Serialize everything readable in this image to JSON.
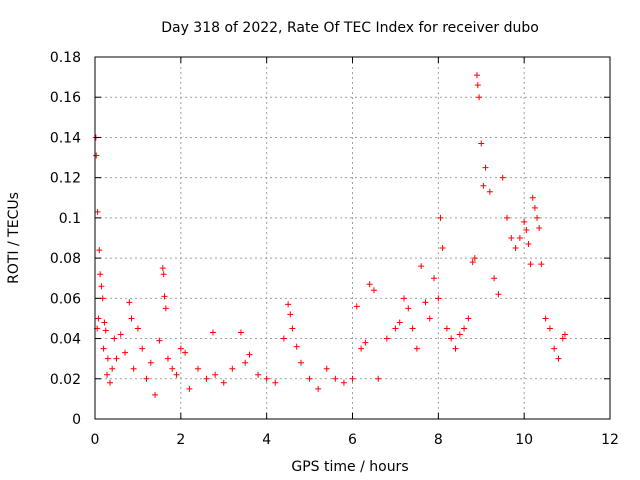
{
  "chart_data": {
    "type": "scatter",
    "title": "Day 318 of 2022, Rate Of TEC Index for receiver dubo",
    "xlabel": "GPS time / hours",
    "ylabel": "ROTI / TECUs",
    "xlim": [
      0,
      12
    ],
    "ylim": [
      0,
      0.18
    ],
    "xticks": [
      0,
      2,
      4,
      6,
      8,
      10,
      12
    ],
    "yticks": [
      0,
      0.02,
      0.04,
      0.06,
      0.08,
      0.1,
      0.12,
      0.14,
      0.16,
      0.18
    ],
    "ytick_labels": [
      "0",
      "0.02",
      "0.04",
      "0.06",
      "0.08",
      "0.1",
      "0.12",
      "0.14",
      "0.16",
      "0.18"
    ],
    "grid": true,
    "marker": "+",
    "marker_color": "#ff0000",
    "series": [
      {
        "name": "ROTI",
        "x": [
          0.02,
          0.03,
          0.05,
          0.06,
          0.08,
          0.1,
          0.12,
          0.15,
          0.18,
          0.2,
          0.22,
          0.25,
          0.28,
          0.3,
          0.35,
          0.4,
          0.45,
          0.5,
          0.6,
          0.7,
          0.8,
          0.85,
          0.9,
          1.0,
          1.1,
          1.2,
          1.3,
          1.4,
          1.5,
          1.58,
          1.6,
          1.62,
          1.65,
          1.7,
          1.8,
          1.9,
          2.0,
          2.1,
          2.2,
          2.4,
          2.6,
          2.75,
          2.8,
          3.0,
          3.2,
          3.4,
          3.5,
          3.6,
          3.8,
          4.0,
          4.2,
          4.4,
          4.5,
          4.55,
          4.6,
          4.7,
          4.8,
          5.0,
          5.2,
          5.4,
          5.6,
          5.8,
          6.0,
          6.1,
          6.2,
          6.3,
          6.4,
          6.5,
          6.6,
          6.8,
          7.0,
          7.1,
          7.2,
          7.3,
          7.4,
          7.5,
          7.6,
          7.7,
          7.8,
          7.9,
          8.0,
          8.05,
          8.1,
          8.2,
          8.3,
          8.4,
          8.5,
          8.6,
          8.7,
          8.8,
          8.85,
          8.9,
          8.92,
          8.95,
          9.0,
          9.05,
          9.1,
          9.2,
          9.3,
          9.4,
          9.5,
          9.6,
          9.7,
          9.8,
          9.9,
          10.0,
          10.05,
          10.1,
          10.15,
          10.2,
          10.25,
          10.3,
          10.35,
          10.4,
          10.5,
          10.6,
          10.7,
          10.8,
          10.9,
          10.95
        ],
        "y": [
          0.14,
          0.131,
          0.045,
          0.103,
          0.05,
          0.084,
          0.072,
          0.066,
          0.06,
          0.035,
          0.048,
          0.044,
          0.022,
          0.03,
          0.018,
          0.025,
          0.04,
          0.03,
          0.042,
          0.033,
          0.058,
          0.05,
          0.025,
          0.045,
          0.035,
          0.02,
          0.028,
          0.012,
          0.039,
          0.075,
          0.072,
          0.061,
          0.055,
          0.03,
          0.025,
          0.022,
          0.035,
          0.033,
          0.015,
          0.025,
          0.02,
          0.043,
          0.022,
          0.018,
          0.025,
          0.043,
          0.028,
          0.032,
          0.022,
          0.02,
          0.018,
          0.04,
          0.057,
          0.052,
          0.045,
          0.036,
          0.028,
          0.02,
          0.015,
          0.025,
          0.02,
          0.018,
          0.02,
          0.056,
          0.035,
          0.038,
          0.067,
          0.064,
          0.02,
          0.04,
          0.045,
          0.048,
          0.06,
          0.055,
          0.045,
          0.035,
          0.076,
          0.058,
          0.05,
          0.07,
          0.06,
          0.1,
          0.085,
          0.045,
          0.04,
          0.035,
          0.042,
          0.045,
          0.05,
          0.078,
          0.08,
          0.171,
          0.166,
          0.16,
          0.137,
          0.116,
          0.125,
          0.113,
          0.07,
          0.062,
          0.12,
          0.1,
          0.09,
          0.085,
          0.09,
          0.098,
          0.094,
          0.087,
          0.077,
          0.11,
          0.105,
          0.1,
          0.095,
          0.077,
          0.05,
          0.045,
          0.035,
          0.03,
          0.04,
          0.042
        ]
      }
    ]
  }
}
